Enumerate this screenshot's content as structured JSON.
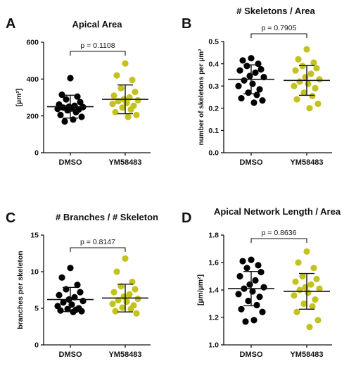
{
  "chart_data": [
    {
      "type": "scatter",
      "panel": "A",
      "title": "Apical Area",
      "xlabel": "",
      "ylabel": "[µm²]",
      "ylim": [
        0,
        600
      ],
      "yticks": [
        0,
        200,
        400,
        600
      ],
      "categories": [
        "DMSO",
        "YM58483"
      ],
      "pvalue": "p = 0.1108",
      "colors": [
        "#000000",
        "#c3c21e"
      ],
      "series": [
        {
          "name": "DMSO",
          "mean": 250,
          "sd": 62,
          "values": [
            405,
            315,
            305,
            290,
            275,
            262,
            255,
            250,
            248,
            245,
            240,
            238,
            235,
            230,
            220,
            205,
            195,
            180,
            170
          ]
        },
        {
          "name": "YM58483",
          "mean": 290,
          "sd": 78,
          "values": [
            485,
            420,
            395,
            350,
            330,
            310,
            300,
            290,
            285,
            280,
            270,
            265,
            255,
            245,
            235,
            220,
            205,
            195
          ]
        }
      ]
    },
    {
      "type": "scatter",
      "panel": "B",
      "title": "# Skeletons / Area",
      "xlabel": "",
      "ylabel": "number of skeletons per µm²",
      "ylim": [
        0,
        0.5
      ],
      "yticks": [
        "0.0",
        "0.1",
        "0.2",
        "0.3",
        "0.4",
        "0.5"
      ],
      "categories": [
        "DMSO",
        "YM58483"
      ],
      "pvalue": "p = 0.7905",
      "colors": [
        "#000000",
        "#c3c21e"
      ],
      "series": [
        {
          "name": "DMSO",
          "mean": 0.33,
          "sd": 0.065,
          "values": [
            0.425,
            0.415,
            0.4,
            0.39,
            0.375,
            0.37,
            0.36,
            0.345,
            0.34,
            0.325,
            0.31,
            0.3,
            0.285,
            0.27,
            0.26,
            0.245,
            0.235,
            0.225
          ]
        },
        {
          "name": "YM58483",
          "mean": 0.325,
          "sd": 0.067,
          "values": [
            0.465,
            0.42,
            0.405,
            0.39,
            0.38,
            0.37,
            0.355,
            0.34,
            0.33,
            0.32,
            0.31,
            0.3,
            0.29,
            0.27,
            0.255,
            0.24,
            0.22,
            0.2
          ]
        }
      ]
    },
    {
      "type": "scatter",
      "panel": "C",
      "title": "# Branches / # Skeleton",
      "xlabel": "",
      "ylabel": "branches per skeleton",
      "ylim": [
        0,
        15
      ],
      "yticks": [
        0,
        5,
        10,
        15
      ],
      "categories": [
        "DMSO",
        "YM58483"
      ],
      "pvalue": "p = 0.8147",
      "colors": [
        "#000000",
        "#c3c21e"
      ],
      "series": [
        {
          "name": "DMSO",
          "mean": 6.2,
          "sd": 1.65,
          "values": [
            10.5,
            9.2,
            8.2,
            7.6,
            7.2,
            6.8,
            6.5,
            6.2,
            6.0,
            5.8,
            5.5,
            5.3,
            5.0,
            4.9,
            4.8,
            4.7,
            4.6,
            4.5
          ]
        },
        {
          "name": "YM58483",
          "mean": 6.4,
          "sd": 1.9,
          "values": [
            11.8,
            10.0,
            8.6,
            8.0,
            7.6,
            7.2,
            6.9,
            6.6,
            6.3,
            6.1,
            5.9,
            5.6,
            5.4,
            5.1,
            4.9,
            4.6,
            4.3
          ]
        }
      ]
    },
    {
      "type": "scatter",
      "panel": "D",
      "title": "Apical Network Length / Area",
      "xlabel": "",
      "ylabel": "[µm/µm²]",
      "ylim": [
        1.0,
        1.8
      ],
      "yticks": [
        "1.0",
        "1.2",
        "1.4",
        "1.6",
        "1.8"
      ],
      "categories": [
        "DMSO",
        "YM58483"
      ],
      "pvalue": "p = 0.8636",
      "colors": [
        "#000000",
        "#c3c21e"
      ],
      "series": [
        {
          "name": "DMSO",
          "mean": 1.41,
          "sd": 0.125,
          "values": [
            1.62,
            1.61,
            1.58,
            1.56,
            1.53,
            1.5,
            1.47,
            1.44,
            1.42,
            1.41,
            1.39,
            1.37,
            1.35,
            1.32,
            1.29,
            1.26,
            1.24,
            1.18,
            1.17
          ]
        },
        {
          "name": "YM58483",
          "mean": 1.39,
          "sd": 0.13,
          "values": [
            1.68,
            1.6,
            1.56,
            1.5,
            1.48,
            1.46,
            1.44,
            1.42,
            1.41,
            1.4,
            1.38,
            1.36,
            1.33,
            1.3,
            1.28,
            1.24,
            1.18,
            1.13
          ]
        }
      ]
    }
  ]
}
